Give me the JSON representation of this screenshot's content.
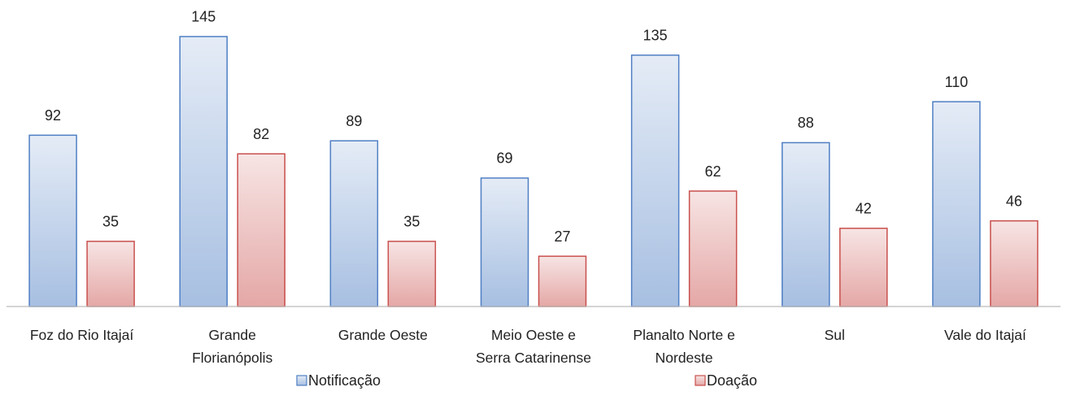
{
  "chart_data": {
    "type": "bar",
    "categories": [
      "Foz do Rio Itajaí",
      "Grande Florianópolis",
      "Grande Oeste",
      "Meio Oeste e Serra Catarinense",
      "Planalto Norte e Nordeste",
      "Sul",
      "Vale do Itajaí"
    ],
    "series": [
      {
        "name": "Notificação",
        "color": "#4f7fc4",
        "values": [
          92,
          145,
          89,
          69,
          135,
          88,
          110
        ]
      },
      {
        "name": "Doação",
        "color": "#c9504d",
        "values": [
          35,
          82,
          35,
          27,
          62,
          42,
          46
        ]
      }
    ],
    "ylim": [
      0,
      160
    ],
    "grid": false,
    "legend": "bottom"
  }
}
